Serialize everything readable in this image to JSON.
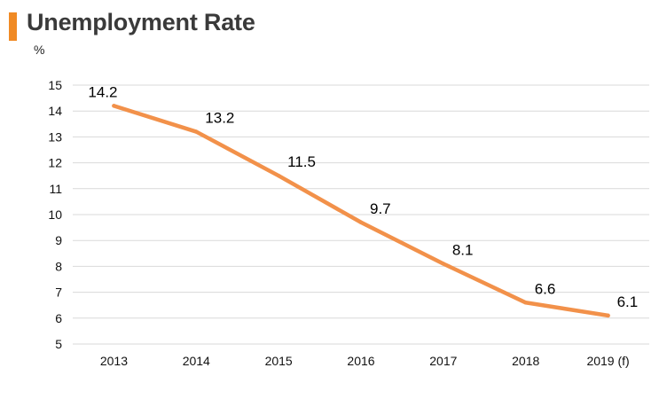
{
  "header": {
    "title": "Unemployment Rate",
    "unit": "%",
    "accent_color": "#F08A24"
  },
  "chart_data": {
    "type": "line",
    "title": "Unemployment Rate",
    "ylabel": "%",
    "xlabel": "",
    "categories": [
      "2013",
      "2014",
      "2015",
      "2016",
      "2017",
      "2018",
      "2019 (f)"
    ],
    "values": [
      14.2,
      13.2,
      11.5,
      9.7,
      8.1,
      6.6,
      6.1
    ],
    "data_labels": [
      "14.2",
      "13.2",
      "11.5",
      "9.7",
      "8.1",
      "6.6",
      "6.1"
    ],
    "ylim": [
      5,
      15
    ],
    "yticks": [
      5,
      6,
      7,
      8,
      9,
      10,
      11,
      12,
      13,
      14,
      15
    ],
    "grid": true,
    "legend": "none",
    "line_color": "#F2914A",
    "grid_color": "#D9D9D9"
  }
}
